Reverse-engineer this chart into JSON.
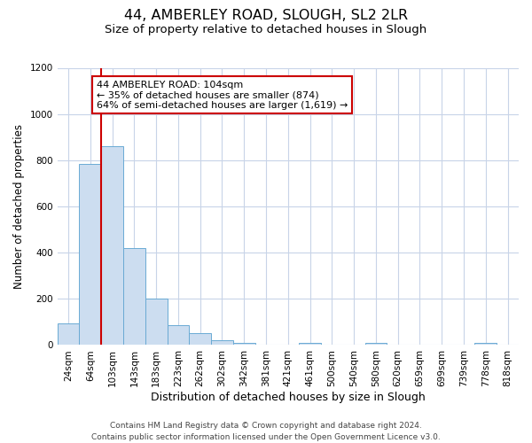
{
  "title": "44, AMBERLEY ROAD, SLOUGH, SL2 2LR",
  "subtitle": "Size of property relative to detached houses in Slough",
  "xlabel": "Distribution of detached houses by size in Slough",
  "ylabel": "Number of detached properties",
  "bar_labels": [
    "24sqm",
    "64sqm",
    "103sqm",
    "143sqm",
    "183sqm",
    "223sqm",
    "262sqm",
    "302sqm",
    "342sqm",
    "381sqm",
    "421sqm",
    "461sqm",
    "500sqm",
    "540sqm",
    "580sqm",
    "620sqm",
    "659sqm",
    "699sqm",
    "739sqm",
    "778sqm",
    "818sqm"
  ],
  "bar_values": [
    92,
    785,
    862,
    420,
    200,
    85,
    52,
    22,
    10,
    0,
    0,
    10,
    0,
    0,
    10,
    0,
    0,
    0,
    0,
    10,
    0
  ],
  "bar_color": "#ccddf0",
  "bar_edge_color": "#6aaad4",
  "vline_x_index": 2,
  "vline_color": "#cc0000",
  "annotation_line1": "44 AMBERLEY ROAD: 104sqm",
  "annotation_line2": "← 35% of detached houses are smaller (874)",
  "annotation_line3": "64% of semi-detached houses are larger (1,619) →",
  "annotation_box_color": "#ffffff",
  "annotation_box_edge": "#cc0000",
  "ylim": [
    0,
    1200
  ],
  "yticks": [
    0,
    200,
    400,
    600,
    800,
    1000,
    1200
  ],
  "footer_line1": "Contains HM Land Registry data © Crown copyright and database right 2024.",
  "footer_line2": "Contains public sector information licensed under the Open Government Licence v3.0.",
  "bg_color": "#ffffff",
  "grid_color": "#c8d4e8",
  "title_fontsize": 11.5,
  "subtitle_fontsize": 9.5,
  "xlabel_fontsize": 9,
  "ylabel_fontsize": 8.5,
  "tick_fontsize": 7.5,
  "annot_fontsize": 8,
  "footer_fontsize": 6.5
}
